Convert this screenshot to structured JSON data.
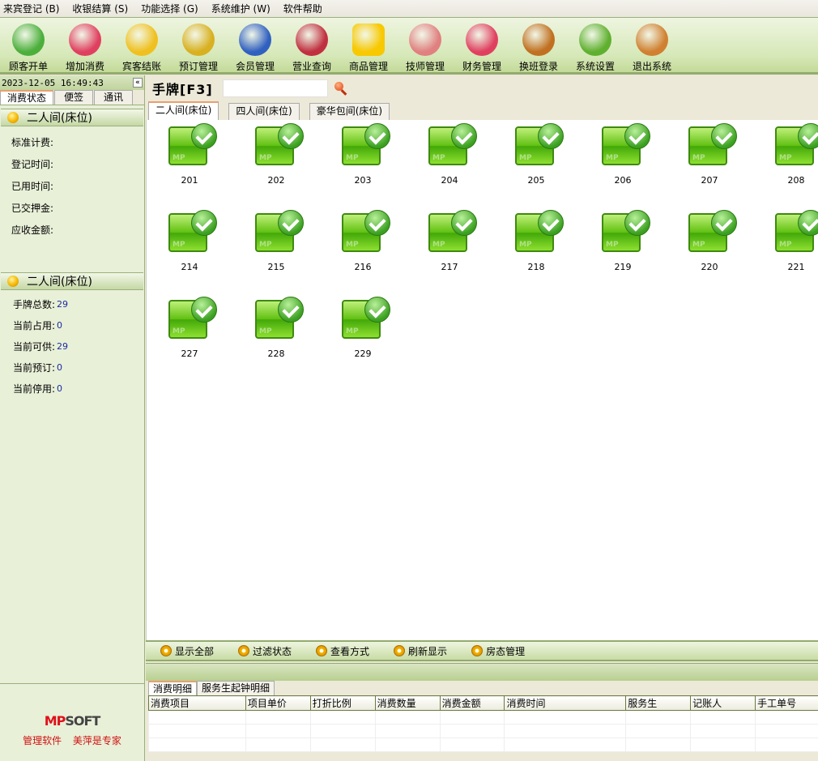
{
  "menu": [
    "来宾登记 (B)",
    "收银结算 (S)",
    "功能选择 (G)",
    "系统维护 (W)",
    "软件帮助"
  ],
  "toolbar": [
    {
      "label": "顾客开单",
      "icon": "customer-icon",
      "color": "#4caf3c"
    },
    {
      "label": "增加消费",
      "icon": "add-consumption-icon",
      "color": "#e04060"
    },
    {
      "label": "宾客结账",
      "icon": "checkout-icon",
      "color": "#f0c020"
    },
    {
      "label": "预订管理",
      "icon": "clock-icon",
      "color": "#d8b020"
    },
    {
      "label": "会员管理",
      "icon": "members-icon",
      "color": "#3060c0"
    },
    {
      "label": "营业查询",
      "icon": "notebook-icon",
      "color": "#c03040"
    },
    {
      "label": "商品管理",
      "icon": "star-icon",
      "color": "#f8c800"
    },
    {
      "label": "技师管理",
      "icon": "technicians-icon",
      "color": "#e08080"
    },
    {
      "label": "财务管理",
      "icon": "calculator-icon",
      "color": "#e04060"
    },
    {
      "label": "换班登录",
      "icon": "shift-exit-icon",
      "color": "#c07020"
    },
    {
      "label": "系统设置",
      "icon": "gears-icon",
      "color": "#60b030"
    },
    {
      "label": "退出系统",
      "icon": "exit-door-icon",
      "color": "#d08030"
    }
  ],
  "left": {
    "datetime": "2023-12-05 16:49:43",
    "collapse": "«",
    "tabs": [
      "消费状态",
      "便签",
      "通讯"
    ],
    "section1": "二人间(床位)",
    "fields1": [
      "标准计费:",
      "登记时间:",
      "已用时间:",
      "已交押金:",
      "应收金额:"
    ],
    "section2": "二人间(床位)",
    "fields2": [
      {
        "label": "手牌总数:",
        "value": "29"
      },
      {
        "label": "当前占用:",
        "value": "0"
      },
      {
        "label": "当前可供:",
        "value": "29"
      },
      {
        "label": "当前预订:",
        "value": "0"
      },
      {
        "label": "当前停用:",
        "value": "0"
      }
    ],
    "logo": "MPSOFT",
    "slogan": "管理软件 美萍是专家"
  },
  "main": {
    "title": "手牌[F3]",
    "search_value": "",
    "tabs": [
      "二人间(床位)",
      "四人间(床位)",
      "豪华包间(床位)"
    ],
    "rooms": [
      "201",
      "202",
      "203",
      "204",
      "205",
      "206",
      "207",
      "208",
      "214",
      "215",
      "216",
      "217",
      "218",
      "219",
      "220",
      "221",
      "227",
      "228",
      "229"
    ],
    "room_status": "available"
  },
  "bottom_toolbar": [
    "显示全部",
    "过滤状态",
    "查看方式",
    "刷新显示",
    "房态管理"
  ],
  "detail_tabs": [
    "消费明细",
    "服务生起钟明细"
  ],
  "columns": [
    "消费项目",
    "项目单价",
    "打折比例",
    "消费数量",
    "消费金额",
    "消费时间",
    "服务生",
    "记账人",
    "手工单号"
  ]
}
